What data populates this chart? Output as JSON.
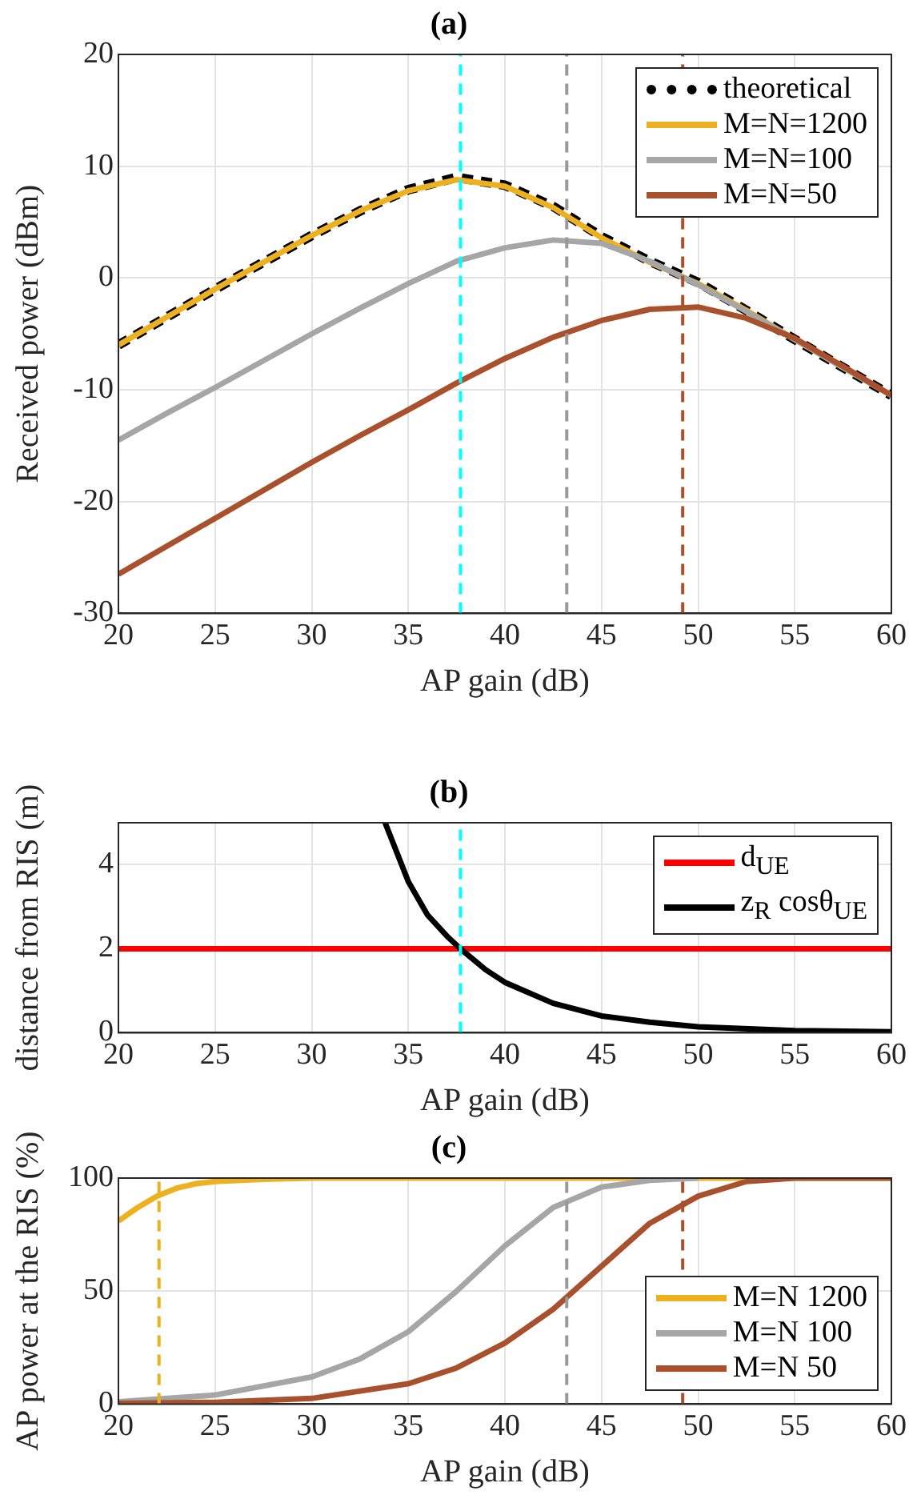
{
  "chart_data": [
    {
      "type": "line",
      "title": "(a)",
      "xlabel": "AP gain (dB)",
      "ylabel": "Received power (dBm)",
      "x": [
        20,
        22.5,
        25,
        27.5,
        30,
        32.5,
        35,
        37.5,
        40,
        42.5,
        45,
        47.5,
        50,
        52.5,
        55,
        57.5,
        60
      ],
      "series": [
        {
          "name": "theoretical",
          "color": "#000000",
          "line_style": "dashed",
          "values": [
            -6,
            -3.5,
            -1,
            1.4,
            3.8,
            6,
            7.9,
            9,
            8.3,
            6.4,
            3.7,
            1.5,
            -0.4,
            -2.9,
            -5.5,
            -8,
            -10.5
          ]
        },
        {
          "name": "M=N=1200",
          "color": "#edb120",
          "values": [
            -6,
            -3.5,
            -1,
            1.4,
            3.8,
            6,
            7.8,
            8.8,
            8.2,
            6.3,
            3.6,
            1.4,
            -0.5,
            -2.9,
            -5.5,
            -8,
            -10.5
          ]
        },
        {
          "name": "M=N=100",
          "color": "#a6a6a6",
          "values": [
            -14.5,
            -12.1,
            -9.8,
            -7.4,
            -5,
            -2.7,
            -0.5,
            1.5,
            2.7,
            3.4,
            3.1,
            1.5,
            -0.6,
            -3,
            -5.5,
            -8,
            -10.5
          ]
        },
        {
          "name": "M=N=50",
          "color": "#a9502d",
          "values": [
            -26.5,
            -24,
            -21.5,
            -19,
            -16.5,
            -14.1,
            -11.8,
            -9.4,
            -7.2,
            -5.3,
            -3.8,
            -2.8,
            -2.6,
            -3.6,
            -5.4,
            -7.9,
            -10.5
          ]
        }
      ],
      "xlim": [
        20,
        60
      ],
      "xticks": [
        20,
        25,
        30,
        35,
        40,
        45,
        50,
        55,
        60
      ],
      "ylim": [
        -30,
        20
      ],
      "yticks": [
        -30,
        -20,
        -10,
        0,
        10,
        20
      ],
      "ref_lines": [
        {
          "axis": "x",
          "value": 37.7,
          "color": "#00ffff",
          "line_style": "dashed"
        },
        {
          "axis": "x",
          "value": 43.2,
          "color": "#999999",
          "line_style": "dashed"
        },
        {
          "axis": "x",
          "value": 49.2,
          "color": "#a9502d",
          "line_style": "dashed"
        }
      ],
      "grid": true,
      "legend": "top right",
      "marker": "none",
      "line_style": "solid"
    },
    {
      "type": "line",
      "title": "(b)",
      "xlabel": "AP gain (dB)",
      "ylabel": "distance from RIS (m)",
      "series": [
        {
          "name": "d$_{UE}$",
          "color": "#ff0000",
          "x": [
            20,
            60
          ],
          "values": [
            2,
            2
          ]
        },
        {
          "name": "z$_{R}$ cosθ$_{UE}$",
          "color": "#000000",
          "x": [
            33.8,
            35,
            36,
            37,
            37.7,
            39,
            40,
            42.5,
            45,
            47.5,
            50,
            55,
            60
          ],
          "values": [
            5,
            3.6,
            2.8,
            2.3,
            2,
            1.5,
            1.2,
            0.7,
            0.4,
            0.25,
            0.14,
            0.05,
            0.02
          ]
        }
      ],
      "xlim": [
        20,
        60
      ],
      "xticks": [
        20,
        25,
        30,
        35,
        40,
        45,
        50,
        55,
        60
      ],
      "ylim": [
        0,
        5
      ],
      "yticks": [
        0,
        2,
        4
      ],
      "ref_lines": [
        {
          "axis": "x",
          "value": 37.7,
          "color": "#00ffff",
          "line_style": "dashed"
        }
      ],
      "grid": true,
      "legend": "top right",
      "marker": "none",
      "line_style": "solid"
    },
    {
      "type": "line",
      "title": "(c)",
      "xlabel": "AP gain (dB)",
      "ylabel": "AP power at the RIS (%)",
      "series": [
        {
          "name": "M=N 1200",
          "color": "#edb120",
          "x": [
            20,
            21,
            22,
            23,
            24,
            25,
            27.5,
            30,
            40,
            60
          ],
          "values": [
            81,
            87,
            92,
            95.5,
            97.5,
            98.5,
            99.5,
            100,
            100,
            100
          ]
        },
        {
          "name": "M=N 100",
          "color": "#a6a6a6",
          "x": [
            20,
            25,
            30,
            32.5,
            35,
            37.5,
            40,
            42.5,
            45,
            47.5,
            50
          ],
          "values": [
            1,
            4,
            12,
            20,
            32,
            50,
            70,
            87,
            96,
            99,
            100
          ]
        },
        {
          "name": "M=N 50",
          "color": "#a9502d",
          "x": [
            20,
            25,
            30,
            35,
            37.5,
            40,
            42.5,
            45,
            47.5,
            50,
            52.5,
            55,
            60
          ],
          "values": [
            0.3,
            0.8,
            2.5,
            9,
            16,
            27,
            42,
            61,
            80,
            92,
            98.5,
            100,
            100
          ]
        }
      ],
      "xlim": [
        20,
        60
      ],
      "xticks": [
        20,
        25,
        30,
        35,
        40,
        45,
        50,
        55,
        60
      ],
      "ylim": [
        0,
        100
      ],
      "yticks": [
        0,
        50,
        100
      ],
      "ref_lines": [
        {
          "axis": "x",
          "value": 22.1,
          "color": "#edb120",
          "line_style": "dashed"
        },
        {
          "axis": "x",
          "value": 43.2,
          "color": "#999999",
          "line_style": "dashed"
        },
        {
          "axis": "x",
          "value": 49.2,
          "color": "#a9502d",
          "line_style": "dashed"
        }
      ],
      "grid": true,
      "legend": "bottom right",
      "marker": "none",
      "line_style": "solid"
    }
  ]
}
